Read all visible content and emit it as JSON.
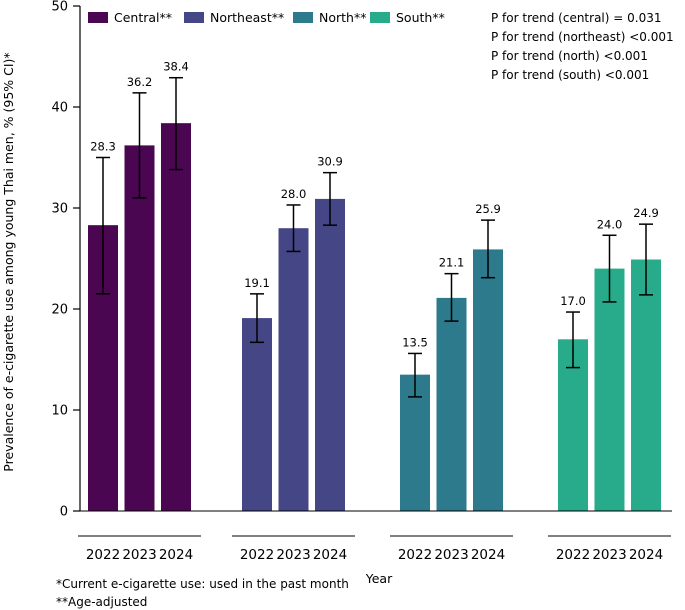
{
  "chart_data": {
    "type": "bar",
    "ylabel": "Prevalence of e-cigarette use among young Thai men, % (95% CI)*",
    "xlabel": "Year",
    "ylim": [
      0,
      50
    ],
    "yticks": [
      0,
      10,
      20,
      30,
      40,
      50
    ],
    "grid": false,
    "legend_position": "top-left",
    "series": [
      {
        "name": "Central**",
        "color": "#4b0652",
        "categories": [
          "2022",
          "2023",
          "2024"
        ],
        "values": [
          28.3,
          36.2,
          38.4
        ],
        "ci_low": [
          21.5,
          31.0,
          33.8
        ],
        "ci_high": [
          35.0,
          41.4,
          42.9
        ],
        "labels": [
          "28.3",
          "36.2",
          "38.4"
        ]
      },
      {
        "name": "Northeast**",
        "color": "#454685",
        "categories": [
          "2022",
          "2023",
          "2024"
        ],
        "values": [
          19.1,
          28.0,
          30.9
        ],
        "ci_low": [
          16.7,
          25.7,
          28.3
        ],
        "ci_high": [
          21.5,
          30.3,
          33.5
        ],
        "labels": [
          "19.1",
          "28.0",
          "30.9"
        ]
      },
      {
        "name": "North**",
        "color": "#2c7a8c",
        "categories": [
          "2022",
          "2023",
          "2024"
        ],
        "values": [
          13.5,
          21.1,
          25.9
        ],
        "ci_low": [
          11.3,
          18.8,
          23.1
        ],
        "ci_high": [
          15.6,
          23.5,
          28.8
        ],
        "labels": [
          "13.5",
          "21.1",
          "25.9"
        ]
      },
      {
        "name": "South**",
        "color": "#27ab8a",
        "categories": [
          "2022",
          "2023",
          "2024"
        ],
        "values": [
          17.0,
          24.0,
          24.9
        ],
        "ci_low": [
          14.2,
          20.7,
          21.4
        ],
        "ci_high": [
          19.7,
          27.3,
          28.4
        ],
        "labels": [
          "17.0",
          "24.0",
          "24.9"
        ]
      }
    ],
    "annotations": [
      "P for trend (central) = 0.031",
      "P for trend (northeast) <0.001",
      "P for trend (north) <0.001",
      "P for trend (south) <0.001"
    ],
    "footnotes": [
      "*Current e-cigarette use: used in the past month",
      "**Age-adjusted"
    ]
  }
}
